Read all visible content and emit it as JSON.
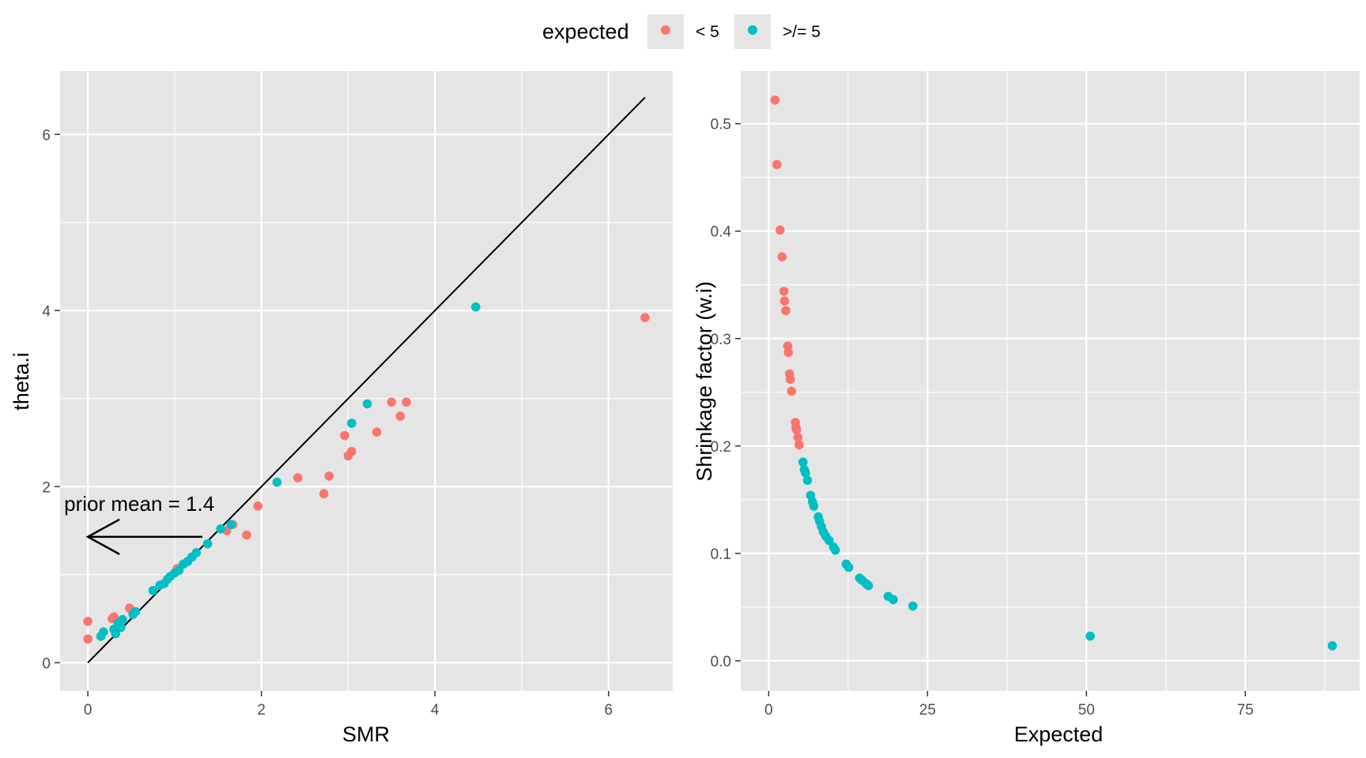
{
  "legend": {
    "title": "expected",
    "entries": [
      {
        "label": "< 5",
        "color": "#F8766D"
      },
      {
        "label": ">/= 5",
        "color": "#00BFC4"
      }
    ]
  },
  "colors": {
    "panel_bg": "#E5E5E5",
    "grid": "#FFFFFF",
    "low": "#F8766D",
    "high": "#00BFC4",
    "line": "#000000"
  },
  "chart_data": [
    {
      "type": "scatter",
      "xlabel": "SMR",
      "ylabel": "theta.i",
      "xlim": [
        -0.32,
        6.74
      ],
      "ylim": [
        -0.32,
        6.72
      ],
      "xticks": [
        0,
        2,
        4,
        6
      ],
      "yticks": [
        0,
        2,
        4,
        6
      ],
      "reference_line": {
        "from": [
          0,
          0
        ],
        "to": [
          6.42,
          6.42
        ]
      },
      "annotation": {
        "text": "prior mean = 1.4",
        "arrow_from": [
          1.32,
          1.43
        ],
        "arrow_to": [
          0,
          1.43
        ]
      },
      "series": [
        {
          "group": "< 5",
          "points": [
            [
              0.0,
              0.47
            ],
            [
              0.0,
              0.27
            ],
            [
              0.28,
              0.5
            ],
            [
              0.3,
              0.52
            ],
            [
              0.48,
              0.62
            ],
            [
              1.03,
              1.07
            ],
            [
              1.6,
              1.5
            ],
            [
              1.67,
              1.57
            ],
            [
              1.83,
              1.45
            ],
            [
              1.96,
              1.78
            ],
            [
              2.42,
              2.1
            ],
            [
              2.72,
              1.92
            ],
            [
              2.78,
              2.12
            ],
            [
              2.96,
              2.58
            ],
            [
              3.0,
              2.35
            ],
            [
              3.04,
              2.4
            ],
            [
              3.33,
              2.62
            ],
            [
              3.5,
              2.96
            ],
            [
              3.6,
              2.8
            ],
            [
              3.67,
              2.96
            ],
            [
              6.42,
              3.92
            ]
          ]
        },
        {
          "group": ">/= 5",
          "points": [
            [
              0.15,
              0.3
            ],
            [
              0.18,
              0.35
            ],
            [
              0.3,
              0.38
            ],
            [
              0.32,
              0.33
            ],
            [
              0.35,
              0.45
            ],
            [
              0.38,
              0.4
            ],
            [
              0.4,
              0.49
            ],
            [
              0.52,
              0.55
            ],
            [
              0.55,
              0.58
            ],
            [
              0.75,
              0.82
            ],
            [
              0.83,
              0.88
            ],
            [
              0.88,
              0.9
            ],
            [
              0.92,
              0.95
            ],
            [
              0.95,
              0.98
            ],
            [
              1.0,
              1.02
            ],
            [
              1.05,
              1.05
            ],
            [
              1.1,
              1.12
            ],
            [
              1.15,
              1.15
            ],
            [
              1.2,
              1.2
            ],
            [
              1.25,
              1.25
            ],
            [
              1.38,
              1.35
            ],
            [
              1.53,
              1.52
            ],
            [
              1.65,
              1.57
            ],
            [
              2.18,
              2.05
            ],
            [
              3.04,
              2.72
            ],
            [
              3.22,
              2.94
            ],
            [
              4.47,
              4.04
            ]
          ]
        }
      ]
    },
    {
      "type": "scatter",
      "xlabel": "Expected",
      "ylabel": "Shrinkage factor (w.i)",
      "xlim": [
        -4.4,
        93.0
      ],
      "ylim": [
        -0.028,
        0.549
      ],
      "xticks": [
        0,
        25,
        50,
        75
      ],
      "yticks": [
        0.0,
        0.1,
        0.2,
        0.3,
        0.4,
        0.5
      ],
      "ytick_labels": [
        "0.0",
        "0.1",
        "0.2",
        "0.3",
        "0.4",
        "0.5"
      ],
      "series": [
        {
          "group": "< 5",
          "points": [
            [
              1.0,
              0.522
            ],
            [
              1.3,
              0.462
            ],
            [
              1.8,
              0.401
            ],
            [
              2.1,
              0.376
            ],
            [
              2.4,
              0.344
            ],
            [
              2.5,
              0.335
            ],
            [
              2.7,
              0.326
            ],
            [
              3.0,
              0.293
            ],
            [
              3.1,
              0.287
            ],
            [
              3.3,
              0.267
            ],
            [
              3.4,
              0.262
            ],
            [
              3.6,
              0.251
            ],
            [
              4.2,
              0.222
            ],
            [
              4.3,
              0.217
            ],
            [
              4.4,
              0.215
            ],
            [
              4.6,
              0.208
            ],
            [
              4.8,
              0.201
            ]
          ]
        },
        {
          "group": ">/= 5",
          "points": [
            [
              5.4,
              0.185
            ],
            [
              5.6,
              0.178
            ],
            [
              5.8,
              0.175
            ],
            [
              6.1,
              0.168
            ],
            [
              6.6,
              0.154
            ],
            [
              6.9,
              0.148
            ],
            [
              7.1,
              0.144
            ],
            [
              7.8,
              0.134
            ],
            [
              8.0,
              0.13
            ],
            [
              8.3,
              0.125
            ],
            [
              8.6,
              0.12
            ],
            [
              9.0,
              0.116
            ],
            [
              9.5,
              0.112
            ],
            [
              10.2,
              0.106
            ],
            [
              10.5,
              0.103
            ],
            [
              12.2,
              0.09
            ],
            [
              12.6,
              0.087
            ],
            [
              14.3,
              0.077
            ],
            [
              14.7,
              0.075
            ],
            [
              15.3,
              0.072
            ],
            [
              15.7,
              0.07
            ],
            [
              18.8,
              0.06
            ],
            [
              19.6,
              0.057
            ],
            [
              22.7,
              0.051
            ],
            [
              50.6,
              0.023
            ],
            [
              88.7,
              0.014
            ]
          ]
        }
      ]
    }
  ]
}
